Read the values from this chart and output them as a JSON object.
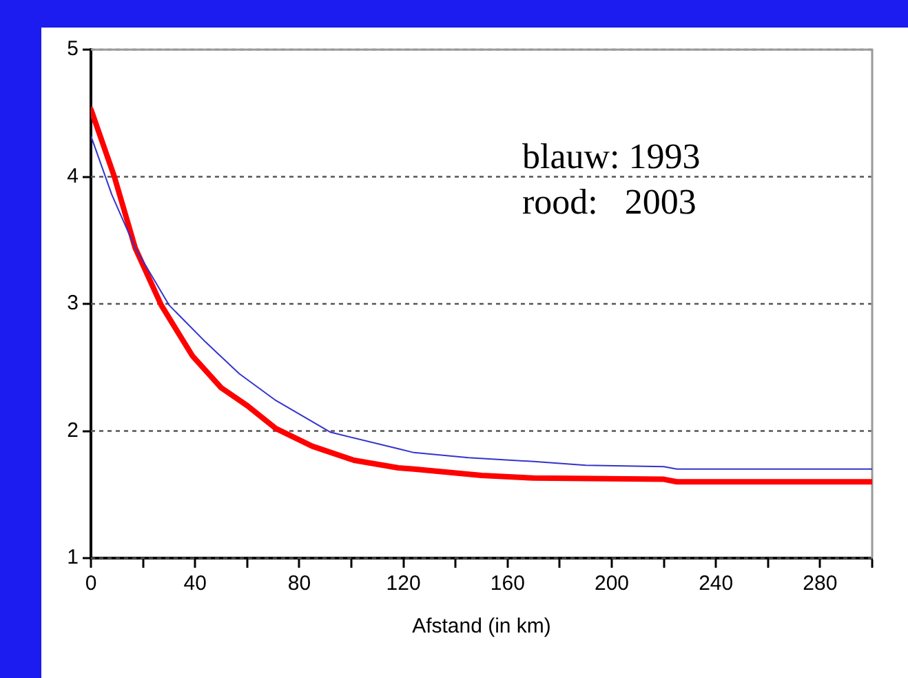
{
  "chart_data": {
    "type": "line",
    "xlabel": "Afstand (in km)",
    "annotations": [
      "blauw: 1993",
      "rood:   2003"
    ],
    "xlim": [
      0,
      300
    ],
    "xticks": [
      0,
      {
        "value": 20,
        "label": null
      },
      40,
      {
        "value": 60,
        "label": null
      },
      80,
      {
        "value": 100,
        "label": null
      },
      120,
      {
        "value": 140,
        "label": null
      },
      160,
      {
        "value": 180,
        "label": null
      },
      200,
      {
        "value": 220,
        "label": null
      },
      240,
      {
        "value": 260,
        "label": null
      },
      280,
      {
        "value": 300,
        "label": null
      }
    ],
    "ylim": [
      1,
      5
    ],
    "yticks": [
      1,
      2,
      3,
      4,
      5
    ],
    "grid": "y",
    "legend": false,
    "marker": "none",
    "series": [
      {
        "color": "#3333cc",
        "x": [
          0,
          8,
          17,
          30,
          44,
          57,
          71,
          92,
          118,
          124,
          145,
          170,
          190,
          220,
          225,
          300
        ],
        "values": [
          4.32,
          3.86,
          3.44,
          2.99,
          2.7,
          2.45,
          2.24,
          1.99,
          1.86,
          1.83,
          1.79,
          1.76,
          1.73,
          1.72,
          1.7,
          1.7
        ]
      },
      {
        "color": "#ff0000",
        "x": [
          0,
          9,
          17,
          27,
          39,
          50,
          60,
          71,
          85,
          101,
          118,
          124,
          150,
          170,
          220,
          225,
          300
        ],
        "values": [
          4.53,
          4.0,
          3.44,
          2.99,
          2.59,
          2.34,
          2.2,
          2.02,
          1.88,
          1.77,
          1.71,
          1.7,
          1.65,
          1.63,
          1.62,
          1.6,
          1.6
        ]
      }
    ]
  }
}
